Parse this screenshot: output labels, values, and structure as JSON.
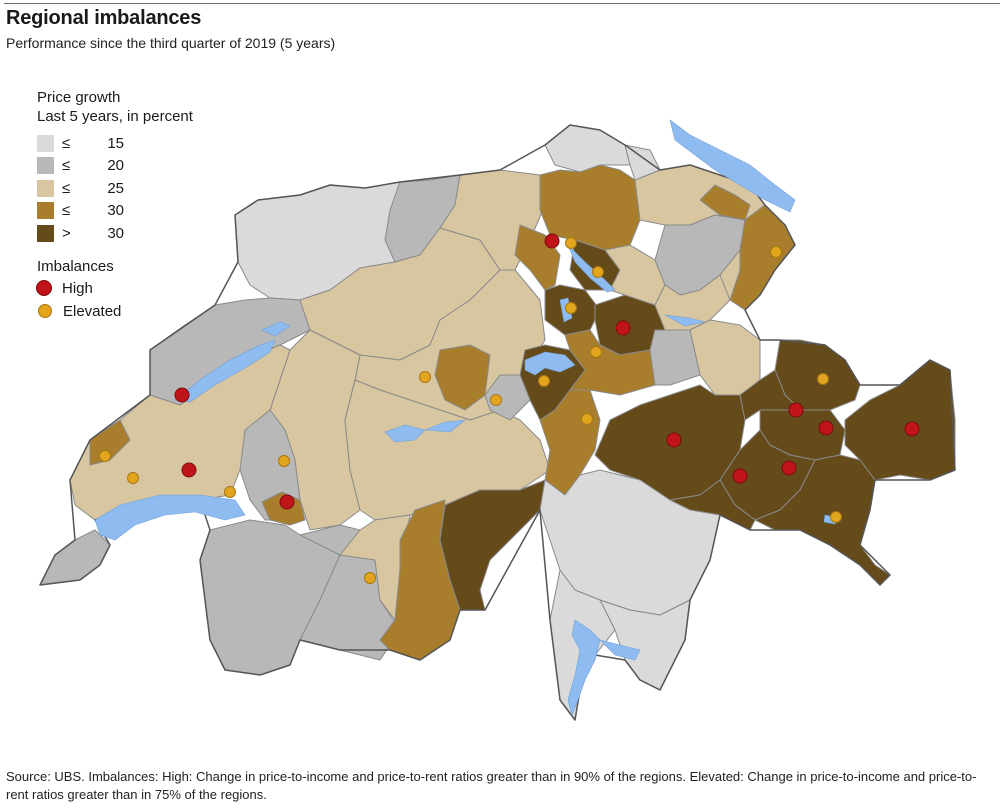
{
  "title": "Regional imbalances",
  "subtitle": "Performance since the third quarter of 2019 (5 years)",
  "legend": {
    "price_growth_title_line1": "Price growth",
    "price_growth_title_line2": "Last 5 years, in percent",
    "classes": [
      {
        "op": "≤",
        "value": "15",
        "color": "#dadada"
      },
      {
        "op": "≤",
        "value": "20",
        "color": "#b8b8b8"
      },
      {
        "op": "≤",
        "value": "25",
        "color": "#d8c6a0"
      },
      {
        "op": "≤",
        "value": "30",
        "color": "#a87e2c"
      },
      {
        "op": ">",
        "value": "30",
        "color": "#654a1a"
      }
    ],
    "imbalances_title": "Imbalances",
    "imbalances": [
      {
        "label": "High",
        "color": "#c0141b"
      },
      {
        "label": "Elevated",
        "color": "#e3a51e"
      }
    ]
  },
  "colors": {
    "lake": "#8fbcf0",
    "border": "#8a8a8a",
    "outline": "#555555"
  },
  "source_note": "Source: UBS. Imbalances: High: Change in price-to-income and price-to-rent ratios greater than in 90% of the regions. Elevated: Change in price-to-income and price-to-rent ratios greater than in 75% of the regions."
}
